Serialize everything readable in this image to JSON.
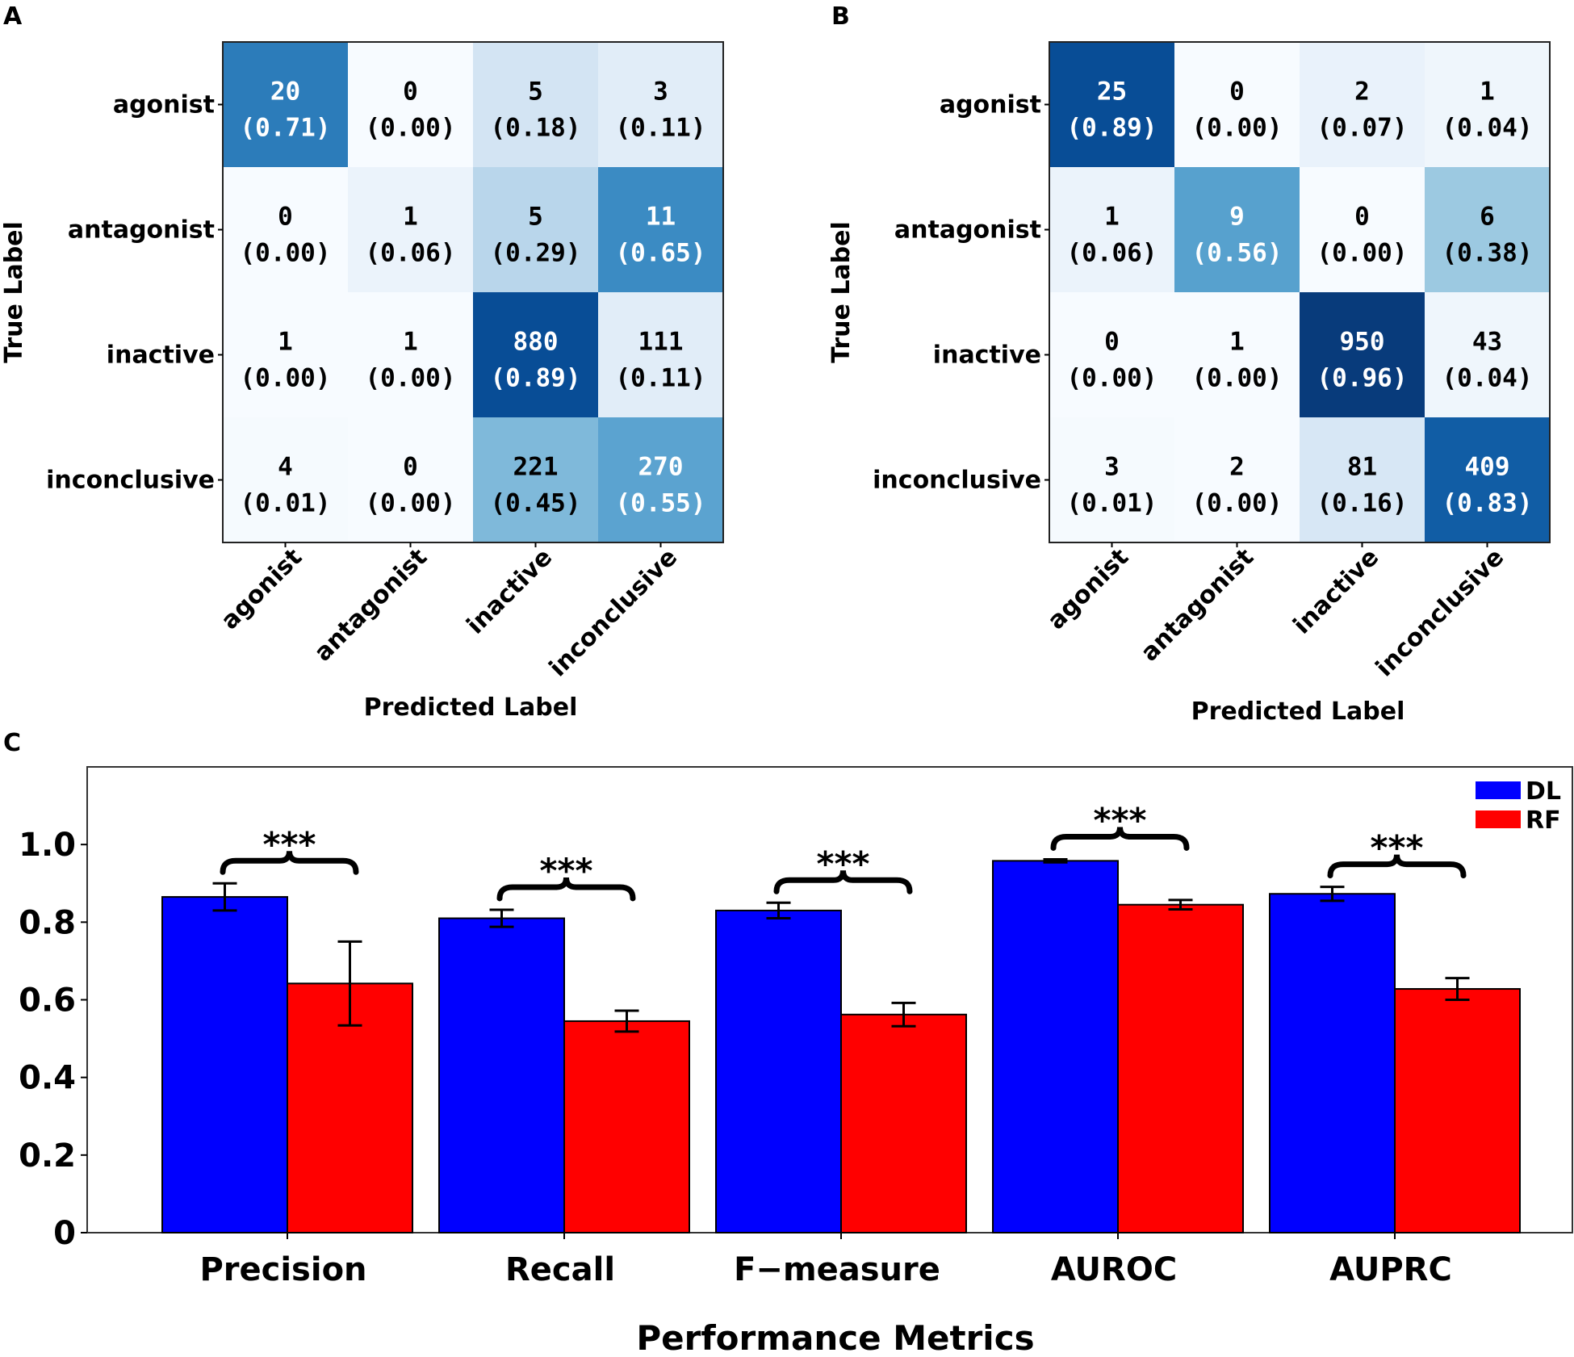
{
  "panels": {
    "a": "A",
    "b": "B",
    "c": "C"
  },
  "chart_data": [
    {
      "type": "heatmap",
      "panel": "A",
      "ylabel": "True Label",
      "xlabel": "Predicted Label",
      "row_labels": [
        "agonist",
        "antagonist",
        "inactive",
        "inconclusive"
      ],
      "col_labels": [
        "agonist",
        "antagonist",
        "inactive",
        "inconclusive"
      ],
      "counts": [
        [
          20,
          0,
          5,
          3
        ],
        [
          0,
          1,
          5,
          11
        ],
        [
          1,
          1,
          880,
          111
        ],
        [
          4,
          0,
          221,
          270
        ]
      ],
      "fractions": [
        [
          "(0.71)",
          "(0.00)",
          "(0.18)",
          "(0.11)"
        ],
        [
          "(0.00)",
          "(0.06)",
          "(0.29)",
          "(0.65)"
        ],
        [
          "(0.00)",
          "(0.00)",
          "(0.89)",
          "(0.11)"
        ],
        [
          "(0.01)",
          "(0.00)",
          "(0.45)",
          "(0.55)"
        ]
      ],
      "colormap": "Blues"
    },
    {
      "type": "heatmap",
      "panel": "B",
      "ylabel": "True Label",
      "xlabel": "Predicted Label",
      "row_labels": [
        "agonist",
        "antagonist",
        "inactive",
        "inconclusive"
      ],
      "col_labels": [
        "agonist",
        "antagonist",
        "inactive",
        "inconclusive"
      ],
      "counts": [
        [
          25,
          0,
          2,
          1
        ],
        [
          1,
          9,
          0,
          6
        ],
        [
          0,
          1,
          950,
          43
        ],
        [
          3,
          2,
          81,
          409
        ]
      ],
      "fractions": [
        [
          "(0.89)",
          "(0.00)",
          "(0.07)",
          "(0.04)"
        ],
        [
          "(0.06)",
          "(0.56)",
          "(0.00)",
          "(0.38)"
        ],
        [
          "(0.00)",
          "(0.00)",
          "(0.96)",
          "(0.04)"
        ],
        [
          "(0.01)",
          "(0.00)",
          "(0.16)",
          "(0.83)"
        ]
      ],
      "colormap": "Blues"
    },
    {
      "type": "bar",
      "panel": "C",
      "xlabel": "Performance Metrics",
      "ylabel": "",
      "categories": [
        "Precision",
        "Recall",
        "F−measure",
        "AUROC",
        "AUPRC"
      ],
      "series": [
        {
          "name": "DL",
          "color": "#0000ff",
          "values": [
            0.865,
            0.81,
            0.83,
            0.958,
            0.873
          ],
          "errors": [
            0.035,
            0.022,
            0.02,
            0.004,
            0.018
          ]
        },
        {
          "name": "RF",
          "color": "#ff0000",
          "values": [
            0.642,
            0.545,
            0.562,
            0.845,
            0.628
          ],
          "errors": [
            0.108,
            0.027,
            0.03,
            0.012,
            0.028
          ]
        }
      ],
      "significance": [
        "***",
        "***",
        "***",
        "***",
        "***"
      ],
      "yticks": [
        0,
        0.2,
        0.4,
        0.6,
        0.8,
        1.0
      ],
      "ytick_labels": [
        "0",
        "0.2",
        "0.4",
        "0.6",
        "0.8",
        "1.0"
      ],
      "ylim": [
        0,
        1.2
      ],
      "legend_position": "top-right"
    }
  ]
}
